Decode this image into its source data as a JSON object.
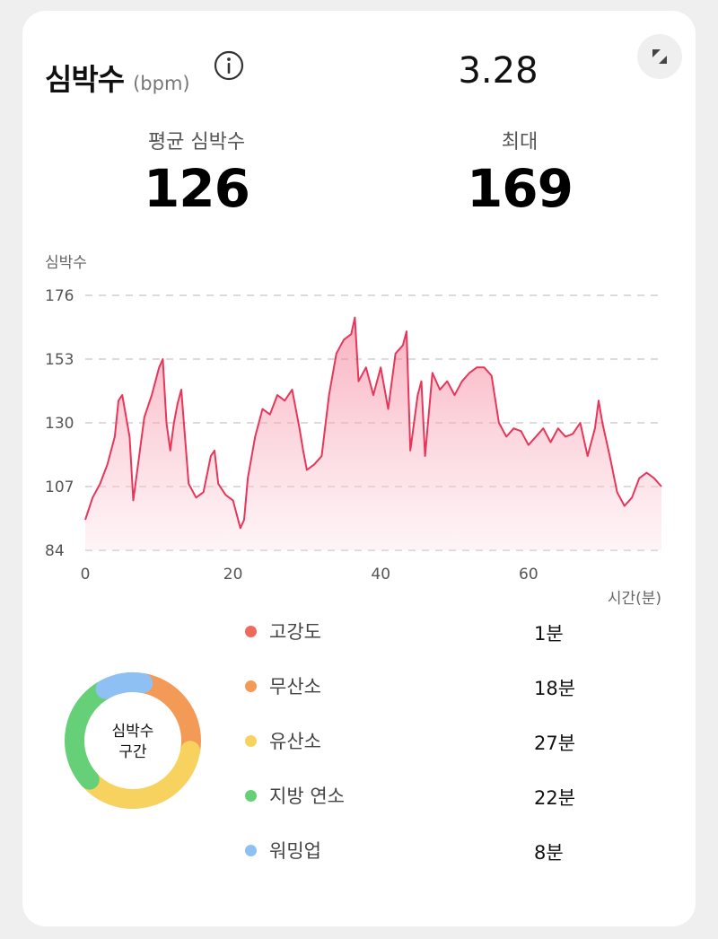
{
  "header": {
    "title": "심박수",
    "unit": "(bpm)",
    "date": "3.28"
  },
  "stats": {
    "avg_label": "평균 심박수",
    "avg_value": "126",
    "max_label": "최대",
    "max_value": "169"
  },
  "chart_data": {
    "type": "area",
    "ylabel": "심박수",
    "xlabel": "시간(분)",
    "ylim": [
      84,
      176
    ],
    "xlim": [
      0,
      78
    ],
    "yticks": [
      "176",
      "153",
      "130",
      "107",
      "84"
    ],
    "xticks": [
      "0",
      "20",
      "40",
      "60"
    ],
    "grid": "horizontal-dashed",
    "line_color": "#e8365a",
    "series": [
      {
        "x": [
          0,
          1,
          2,
          3,
          4,
          4.5,
          5,
          6,
          6.5,
          7,
          8,
          9,
          10,
          10.5,
          11,
          11.5,
          12,
          12.5,
          13,
          14,
          15,
          16,
          17,
          17.5,
          18,
          19,
          20,
          21,
          21.5,
          22,
          23,
          24,
          25,
          26,
          27,
          28,
          29,
          29.5,
          30,
          31,
          32,
          33,
          34,
          35,
          36,
          36.5,
          37,
          38,
          39,
          40,
          41,
          42,
          43,
          43.5,
          44,
          45,
          45.5,
          46,
          47,
          48,
          49,
          50,
          51,
          52,
          53,
          54,
          55,
          56,
          57,
          58,
          59,
          60,
          61,
          62,
          63,
          64,
          65,
          66,
          67,
          68,
          69,
          69.5,
          70,
          71,
          72,
          73,
          74,
          75,
          76,
          77,
          78
        ],
        "values": [
          95,
          103,
          108,
          115,
          125,
          138,
          140,
          125,
          102,
          112,
          132,
          140,
          150,
          153,
          130,
          120,
          130,
          137,
          142,
          108,
          103,
          105,
          118,
          120,
          108,
          104,
          102,
          92,
          95,
          110,
          125,
          135,
          133,
          140,
          138,
          142,
          128,
          120,
          113,
          115,
          118,
          140,
          155,
          160,
          162,
          168,
          145,
          150,
          140,
          150,
          135,
          155,
          158,
          163,
          120,
          140,
          145,
          118,
          148,
          142,
          145,
          140,
          145,
          148,
          150,
          150,
          147,
          130,
          125,
          128,
          127,
          122,
          125,
          128,
          123,
          128,
          125,
          126,
          130,
          118,
          128,
          138,
          130,
          118,
          105,
          100,
          103,
          110,
          112,
          110,
          107
        ]
      }
    ]
  },
  "zones_title": [
    "심박수",
    "구간"
  ],
  "zones": [
    {
      "name": "고강도",
      "value": "1분",
      "color": "#ef6a5a"
    },
    {
      "name": "무산소",
      "value": "18분",
      "color": "#f39a56"
    },
    {
      "name": "유산소",
      "value": "27분",
      "color": "#f7d25e"
    },
    {
      "name": "지방 연소",
      "value": "22분",
      "color": "#66d078"
    },
    {
      "name": "워밍업",
      "value": "8분",
      "color": "#8fc0f4"
    }
  ]
}
